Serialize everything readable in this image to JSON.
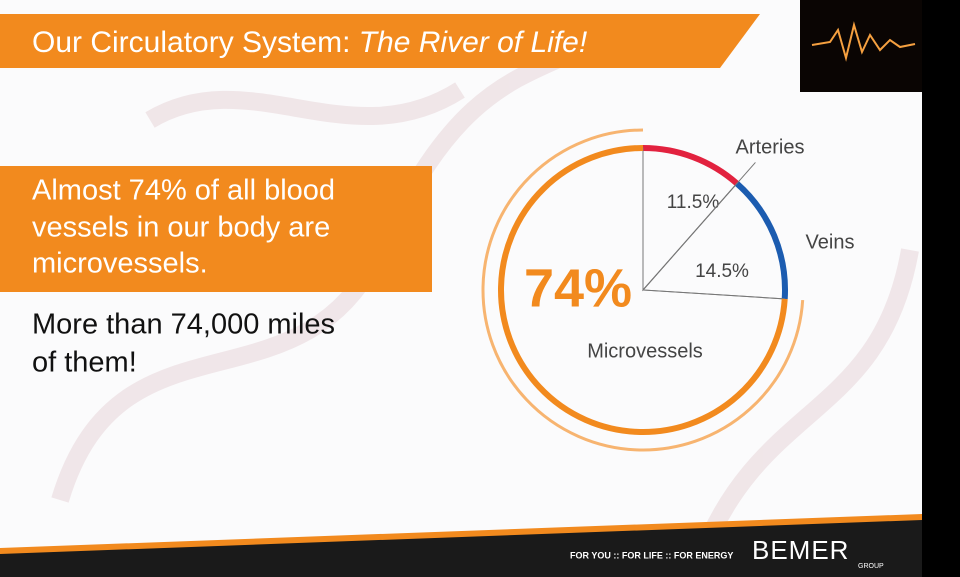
{
  "slide": {
    "title": "Our Circulatory System: ",
    "title_italic": "The River of Life!",
    "callout": [
      "Almost 74% of all blood",
      "vessels in our body are",
      "microvessels."
    ],
    "note": [
      "More than 74,000 miles",
      "of them!"
    ],
    "footer": "FOR YOU :: FOR LIFE :: FOR ENERGY",
    "logo": "BEMER",
    "logo_sub": "GROUP"
  },
  "chart_data": {
    "type": "pie",
    "categories": [
      "Arteries",
      "Veins",
      "Microvessels"
    ],
    "values": [
      11.5,
      14.5,
      74
    ],
    "value_labels": [
      "11.5%",
      "14.5%",
      "74%"
    ],
    "colors": [
      "#e2223f",
      "#1c5cb0",
      "#f28a1e"
    ]
  }
}
